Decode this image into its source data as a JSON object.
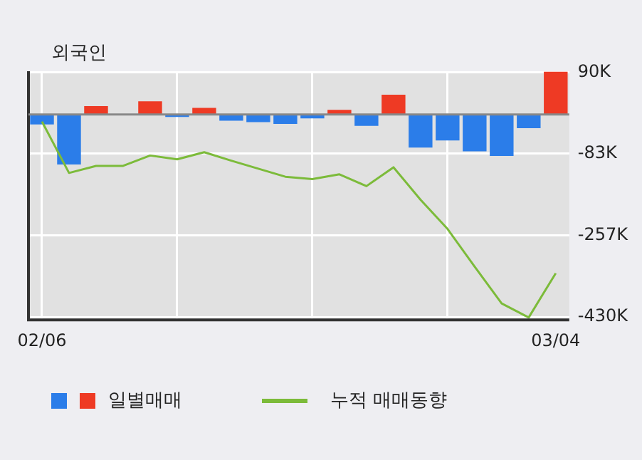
{
  "chart_data": {
    "type": "bar",
    "title": "외국인",
    "categories": [
      "02/06",
      null,
      null,
      null,
      null,
      null,
      null,
      null,
      null,
      null,
      null,
      null,
      null,
      null,
      null,
      null,
      null,
      null,
      null,
      "03/04"
    ],
    "series": [
      {
        "name": "일별매매",
        "colors": [
          "#2b7de9",
          "#2b7de9",
          "#ee3a24",
          "#2b7de9",
          "#ee3a24",
          "#2b7de9",
          "#ee3a24",
          "#2b7de9",
          "#2b7de9",
          "#2b7de9",
          "#2b7de9",
          "#ee3a24",
          "#2b7de9",
          "#ee3a24",
          "#2b7de9",
          "#2b7de9",
          "#2b7de9",
          "#2b7de9",
          "#2b7de9",
          "#ee3a24"
        ],
        "values": [
          -21,
          -106,
          18,
          0,
          28,
          -5,
          14,
          -13,
          -16,
          -20,
          -8,
          10,
          -24,
          42,
          -70,
          -55,
          -78,
          -88,
          -29,
          91
        ]
      },
      {
        "name": "누적 매매동향",
        "type": "line",
        "color": "#7cbb3a",
        "values": [
          -15,
          -124,
          -109,
          -109,
          -87,
          -95,
          -80,
          -98,
          -115,
          -132,
          -137,
          -127,
          -152,
          -112,
          -181,
          -243,
          -323,
          -401,
          -431,
          -337
        ]
      }
    ],
    "ylim": [
      -436,
      92
    ],
    "yticks": [
      {
        "value": 90,
        "label": "90K"
      },
      {
        "value": -83,
        "label": "-83K"
      },
      {
        "value": -257,
        "label": "-257K"
      },
      {
        "value": -430,
        "label": "-430K"
      }
    ],
    "grid": true,
    "legend": "bottom",
    "marker": "none",
    "line_style": "solid"
  }
}
